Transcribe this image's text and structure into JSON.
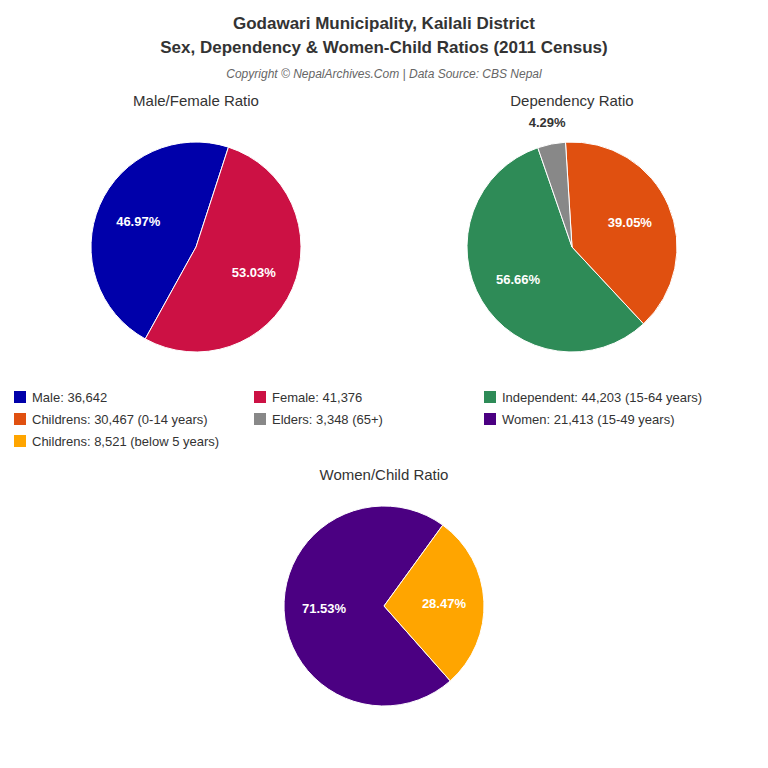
{
  "title": "Godawari Municipality, Kailali District",
  "subtitle": "Sex, Dependency & Women-Child Ratios (2011 Census)",
  "annotations": [
    "Copyright © NepalArchives.Com | Data Source: CBS Nepal"
  ],
  "legend": "center",
  "chart_data": [
    {
      "type": "pie",
      "title": "Male/Female Ratio",
      "categories": [
        "Male: 36,642",
        "Female: 41,376"
      ],
      "values": [
        46.97,
        53.03
      ],
      "value_labels": [
        "46.97%",
        "53.03%"
      ],
      "colors": [
        "#0000AA",
        "#CC1144"
      ],
      "data_labels": true
    },
    {
      "type": "pie",
      "title": "Dependency Ratio",
      "categories": [
        "Independent: 44,203 (15-64 years)",
        "Childrens: 30,467 (0-14 years)",
        "Elders: 3,348 (65+)"
      ],
      "values": [
        56.66,
        39.05,
        4.29
      ],
      "value_labels": [
        "56.66%",
        "39.05%",
        "4.29%"
      ],
      "colors": [
        "#2E8B57",
        "#E05010",
        "#888888"
      ],
      "data_labels": true
    },
    {
      "type": "pie",
      "title": "Women/Child Ratio",
      "categories": [
        "Women: 21,413 (15-49 years)",
        "Childrens: 8,521 (below 5 years)"
      ],
      "values": [
        71.53,
        28.47
      ],
      "value_labels": [
        "71.53%",
        "28.47%"
      ],
      "colors": [
        "#4B0082",
        "#FFA500"
      ],
      "data_labels": true
    }
  ]
}
